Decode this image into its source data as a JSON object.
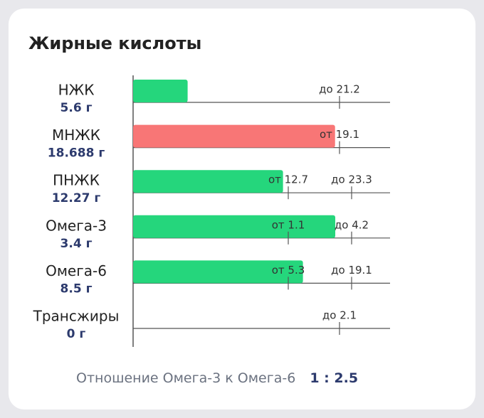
{
  "chart_data": {
    "type": "bar",
    "title": "Жирные кислоты",
    "categories": [
      "НЖК",
      "МНЖК",
      "ПНЖК",
      "Омега-3",
      "Омега-6",
      "Трансжиры"
    ],
    "values": [
      5.6,
      18.688,
      12.27,
      3.4,
      8.5,
      0
    ],
    "value_labels": [
      "5.6 г",
      "18.688 г",
      "12.27 г",
      "3.4 г",
      "8.5 г",
      "0 г"
    ],
    "colors": [
      "#25d67c",
      "#f87676",
      "#25d67c",
      "#25d67c",
      "#25d67c",
      "#25d67c"
    ],
    "lower": [
      null,
      {
        "value": 19.1,
        "label": "от 19.1"
      },
      {
        "value": 12.7,
        "label": "от 12.7"
      },
      {
        "value": 1.1,
        "label": "от 1.1"
      },
      {
        "value": 5.3,
        "label": "от 5.3"
      },
      null
    ],
    "upper": [
      {
        "value": 21.2,
        "label": "до 21.2"
      },
      null,
      {
        "value": 23.3,
        "label": "до 23.3"
      },
      {
        "value": 4.2,
        "label": "до 4.2"
      },
      {
        "value": 19.1,
        "label": "до 19.1"
      },
      {
        "value": 2.1,
        "label": "до 2.1"
      }
    ],
    "ratio_label": "Отношение Омега-3 к Омега-6",
    "ratio": "1 : 2.5"
  }
}
